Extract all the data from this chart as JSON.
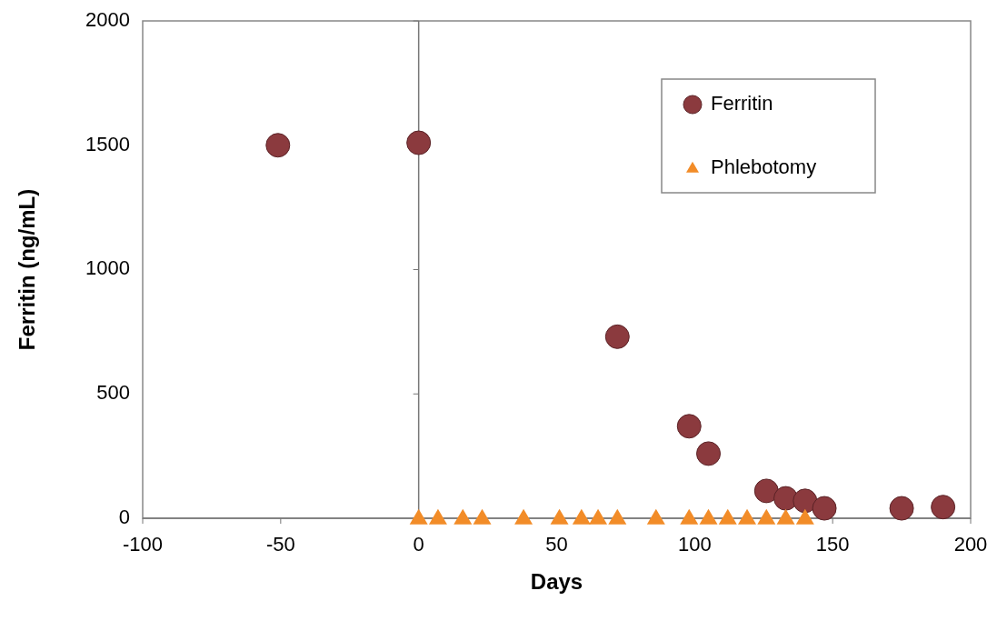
{
  "chart_data": {
    "type": "scatter",
    "xlabel": "Days",
    "ylabel": "Ferritin (ng/mL)",
    "xlim": [
      -100,
      200
    ],
    "xticks": [
      -100,
      -50,
      0,
      50,
      100,
      150,
      200
    ],
    "ylim": [
      0,
      2000
    ],
    "yticks": [
      0,
      500,
      1000,
      1500,
      2000
    ],
    "legend": "top right",
    "series": [
      {
        "name": "Ferritin",
        "color": "#8b3a3e",
        "marker": "circle",
        "x": [
          -51,
          0,
          72,
          98,
          105,
          126,
          133,
          140,
          147,
          175,
          190
        ],
        "values": [
          1500,
          1510,
          730,
          370,
          260,
          110,
          80,
          70,
          40,
          40,
          45
        ]
      },
      {
        "name": "Phlebotomy",
        "color": "#f28c28",
        "marker": "triangle",
        "x": [
          0,
          7,
          16,
          23,
          38,
          51,
          59,
          65,
          72,
          86,
          98,
          105,
          112,
          119,
          126,
          133,
          140
        ],
        "values": [
          0,
          0,
          0,
          0,
          0,
          0,
          0,
          0,
          0,
          0,
          0,
          0,
          0,
          0,
          0,
          0,
          0
        ]
      }
    ]
  }
}
